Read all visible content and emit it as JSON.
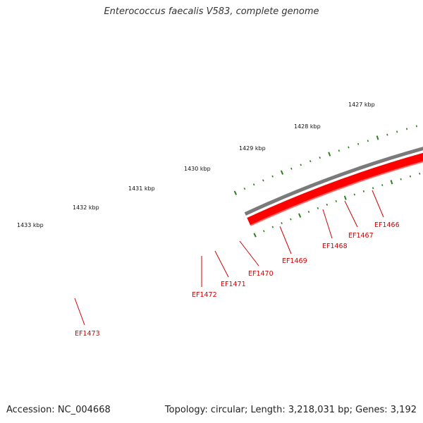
{
  "title": "Enterococcus faecalis V583, complete genome",
  "footer": {
    "accession": "Accession: NC_004668",
    "summary": "Topology: circular; Length: 3,218,031 bp; Genes: 3,192"
  },
  "colors": {
    "backbone": "#7a7a7a",
    "gene": "#ff0000",
    "gene_shadow": "#ff6b6b",
    "tick": "#2e7d1f",
    "label": "#d40000"
  },
  "kbp_labels": [
    "1427 kbp",
    "1428 kbp",
    "1429 kbp",
    "1430 kbp",
    "1431 kbp",
    "1432 kbp",
    "1433 kbp"
  ],
  "genes": [
    "EF1466",
    "EF1467",
    "EF1468",
    "EF1469",
    "EF1470",
    "EF1471",
    "EF1472",
    "EF1473"
  ]
}
